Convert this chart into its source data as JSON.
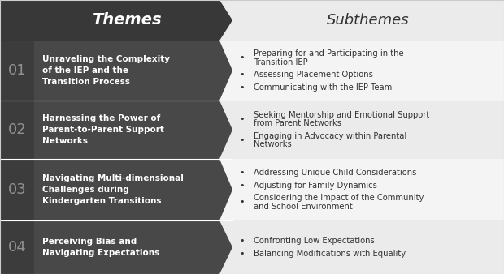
{
  "header_themes": "Themes",
  "header_subthemes": "Subthemes",
  "header_bg": "#383838",
  "header_sub_bg": "#ebebeb",
  "num_col_bg": "#3c3c3c",
  "theme_col_bg": "#484848",
  "row_sub_bg_even": "#f4f4f4",
  "row_sub_bg_odd": "#ebebeb",
  "number_color": "#909090",
  "theme_text_color": "#ffffff",
  "subtheme_text_color": "#333333",
  "separator_color": "#ffffff",
  "themes": [
    {
      "number": "01",
      "title": "Unraveling the Complexity\nof the IEP and the\nTransition Process",
      "subthemes": [
        "Preparing for and Participating in the\nTransition IEP",
        "Assessing Placement Options",
        "Communicating with the IEP Team"
      ]
    },
    {
      "number": "02",
      "title": "Harnessing the Power of\nParent-to-Parent Support\nNetworks",
      "subthemes": [
        "Seeking Mentorship and Emotional Support\nfrom Parent Networks",
        "Engaging in Advocacy within Parental\nNetworks"
      ]
    },
    {
      "number": "03",
      "title": "Navigating Multi-dimensional\nChallenges during\nKindergarten Transitions",
      "subthemes": [
        "Addressing Unique Child Considerations",
        "Adjusting for Family Dynamics",
        "Considering the Impact of the Community\nand School Environment"
      ]
    },
    {
      "number": "04",
      "title": "Perceiving Bias and\nNavigating Expectations",
      "subthemes": [
        "Confronting Low Expectations",
        "Balancing Modifications with Equality"
      ]
    }
  ],
  "fig_width": 6.2,
  "fig_height": 3.38,
  "dpi": 100
}
